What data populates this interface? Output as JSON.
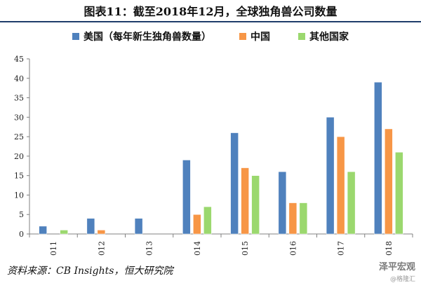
{
  "title": "图表11：截至2018年12月，全球独角兽公司数量",
  "source": "资料来源：CB Insights，恒大研究院",
  "watermark": {
    "line1": "泽平宏观",
    "line2": "@格隆汇"
  },
  "colors": {
    "usa": "#4f81bd",
    "china": "#f79646",
    "other": "#9bd86e",
    "axis": "#808080",
    "title_rule": "#1f3d6b"
  },
  "chart_data": {
    "type": "bar",
    "title": "",
    "xlabel": "",
    "ylabel": "",
    "categories": [
      "2011",
      "2012",
      "2013",
      "2014",
      "2015",
      "2016",
      "2017",
      "2018"
    ],
    "ylim": [
      0,
      45
    ],
    "yticks": [
      0,
      5,
      10,
      15,
      20,
      25,
      30,
      35,
      40,
      45
    ],
    "grid": false,
    "legend_position": "top",
    "series": [
      {
        "name": "美国（每年新生独角兽数量）",
        "color": "#4f81bd",
        "values": [
          2,
          4,
          4,
          19,
          26,
          16,
          30,
          39
        ]
      },
      {
        "name": "中国",
        "color": "#f79646",
        "values": [
          0,
          1,
          0,
          5,
          17,
          8,
          25,
          27
        ]
      },
      {
        "name": "其他国家",
        "color": "#9bd86e",
        "values": [
          1,
          0,
          0,
          7,
          15,
          8,
          16,
          21
        ]
      }
    ]
  }
}
